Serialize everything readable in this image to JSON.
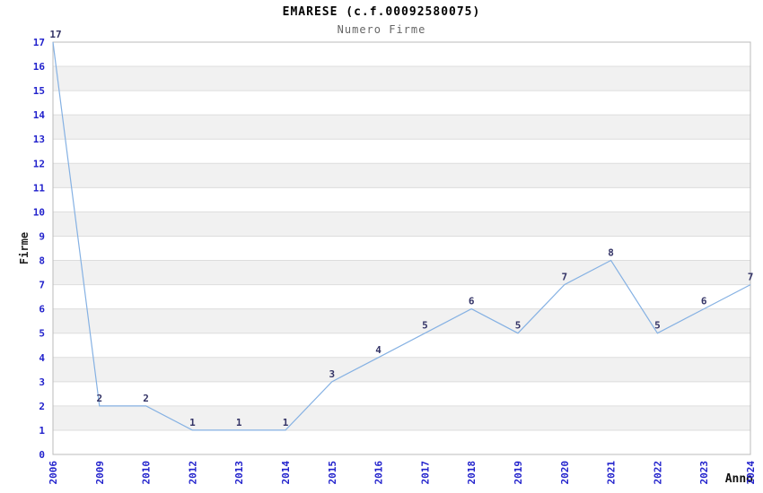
{
  "chart_data": {
    "type": "line",
    "title": "EMARESE (c.f.00092580075)",
    "subtitle": "Numero Firme",
    "xlabel": "Anno",
    "ylabel": "Firme",
    "categories": [
      "2006",
      "2009",
      "2010",
      "2012",
      "2013",
      "2014",
      "2015",
      "2016",
      "2017",
      "2018",
      "2019",
      "2020",
      "2021",
      "2022",
      "2023",
      "2024"
    ],
    "values": [
      17,
      2,
      2,
      1,
      1,
      1,
      3,
      4,
      5,
      6,
      5,
      7,
      8,
      5,
      6,
      7
    ],
    "ylim": [
      0,
      17
    ],
    "ytick_step": 1,
    "grid": "horizontal",
    "band_fill": "alternating-horizontal",
    "legend": "none",
    "point_labels_visible": true,
    "colors": {
      "line": "#85b1e3",
      "tick_label": "#2222cc",
      "point_label": "#333366",
      "band": "#f1f1f1",
      "gridline": "#dddddd",
      "frame": "#bbbbbb",
      "title": "#000000",
      "subtitle": "#666666",
      "axis_title": "#222222",
      "background": "#ffffff"
    }
  }
}
